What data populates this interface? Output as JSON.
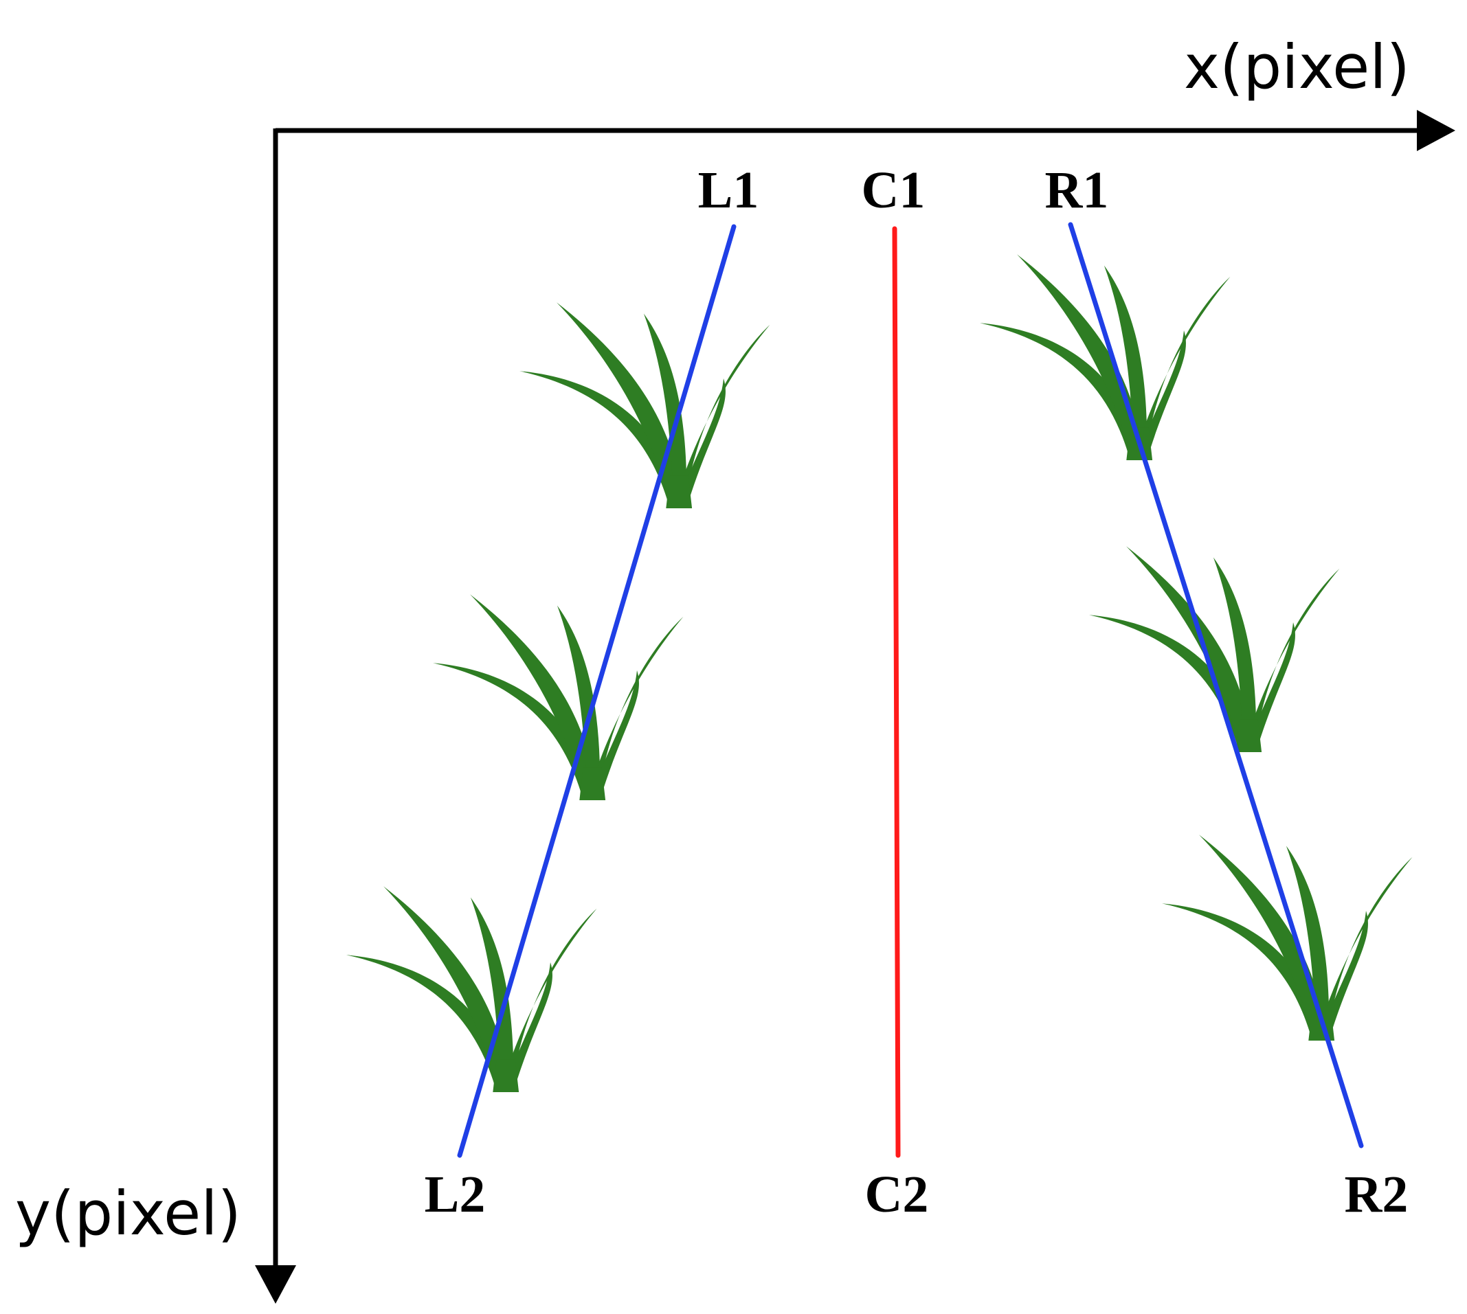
{
  "axes": {
    "x_label": "x(pixel)",
    "y_label": "y(pixel)"
  },
  "points": {
    "L1": "L1",
    "C1": "C1",
    "R1": "R1",
    "L2": "L2",
    "C2": "C2",
    "R2": "R2"
  },
  "colors": {
    "axis": "#000000",
    "row_line": "#1f3fe6",
    "center_line": "#ff1a1a",
    "plant": "#2e7d23"
  }
}
